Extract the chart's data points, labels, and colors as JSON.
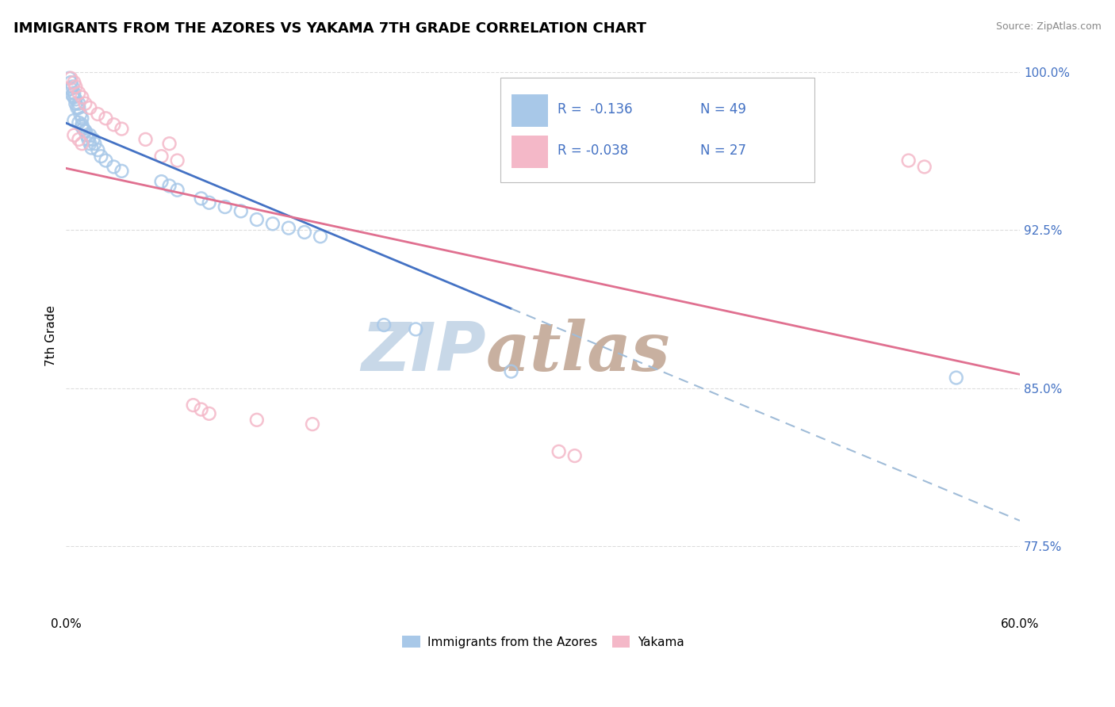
{
  "title": "IMMIGRANTS FROM THE AZORES VS YAKAMA 7TH GRADE CORRELATION CHART",
  "source_text": "Source: ZipAtlas.com",
  "ylabel": "7th Grade",
  "xlim": [
    0.0,
    0.6
  ],
  "ylim": [
    0.745,
    1.005
  ],
  "x_tick_labels": [
    "0.0%",
    "60.0%"
  ],
  "x_ticks": [
    0.0,
    0.6
  ],
  "y_tick_labels": [
    "77.5%",
    "85.0%",
    "92.5%",
    "100.0%"
  ],
  "y_ticks": [
    0.775,
    0.85,
    0.925,
    1.0
  ],
  "grid_color": "#dddddd",
  "background_color": "#ffffff",
  "blue_color": "#a8c8e8",
  "pink_color": "#f4b8c8",
  "blue_line_color": "#4472c4",
  "pink_line_color": "#e07090",
  "blue_dash_color": "#a0bcd8",
  "legend_R_blue": "R =  -0.136",
  "legend_N_blue": "N = 49",
  "legend_R_pink": "R = -0.038",
  "legend_N_pink": "N = 27",
  "legend_label_blue": "Immigrants from the Azores",
  "legend_label_pink": "Yakama",
  "blue_x": [
    0.002,
    0.003,
    0.004,
    0.005,
    0.005,
    0.006,
    0.007,
    0.008,
    0.009,
    0.01,
    0.01,
    0.011,
    0.012,
    0.013,
    0.014,
    0.015,
    0.016,
    0.017,
    0.018,
    0.02,
    0.022,
    0.025,
    0.03,
    0.035,
    0.06,
    0.065,
    0.07,
    0.005,
    0.008,
    0.01,
    0.012,
    0.015,
    0.003,
    0.004,
    0.006,
    0.008,
    0.12,
    0.13,
    0.14,
    0.15,
    0.16,
    0.085,
    0.09,
    0.1,
    0.11,
    0.2,
    0.22,
    0.28,
    0.56
  ],
  "blue_y": [
    0.997,
    0.995,
    0.993,
    0.99,
    0.988,
    0.985,
    0.983,
    0.985,
    0.98,
    0.978,
    0.975,
    0.973,
    0.972,
    0.97,
    0.968,
    0.966,
    0.964,
    0.968,
    0.966,
    0.963,
    0.96,
    0.958,
    0.955,
    0.953,
    0.948,
    0.946,
    0.944,
    0.977,
    0.976,
    0.974,
    0.972,
    0.97,
    0.992,
    0.989,
    0.987,
    0.983,
    0.93,
    0.928,
    0.926,
    0.924,
    0.922,
    0.94,
    0.938,
    0.936,
    0.934,
    0.88,
    0.878,
    0.858,
    0.855
  ],
  "pink_x": [
    0.003,
    0.005,
    0.006,
    0.008,
    0.01,
    0.012,
    0.015,
    0.02,
    0.025,
    0.03,
    0.035,
    0.05,
    0.065,
    0.12,
    0.155,
    0.31,
    0.32,
    0.005,
    0.008,
    0.01,
    0.06,
    0.07,
    0.08,
    0.085,
    0.09,
    0.53,
    0.54
  ],
  "pink_y": [
    0.997,
    0.995,
    0.993,
    0.99,
    0.988,
    0.985,
    0.983,
    0.98,
    0.978,
    0.975,
    0.973,
    0.968,
    0.966,
    0.835,
    0.833,
    0.82,
    0.818,
    0.97,
    0.968,
    0.966,
    0.96,
    0.958,
    0.842,
    0.84,
    0.838,
    0.958,
    0.955
  ],
  "watermark_zip": "ZIP",
  "watermark_atlas": "atlas",
  "watermark_color_zip": "#c8d8e8",
  "watermark_color_atlas": "#c8b0a0"
}
